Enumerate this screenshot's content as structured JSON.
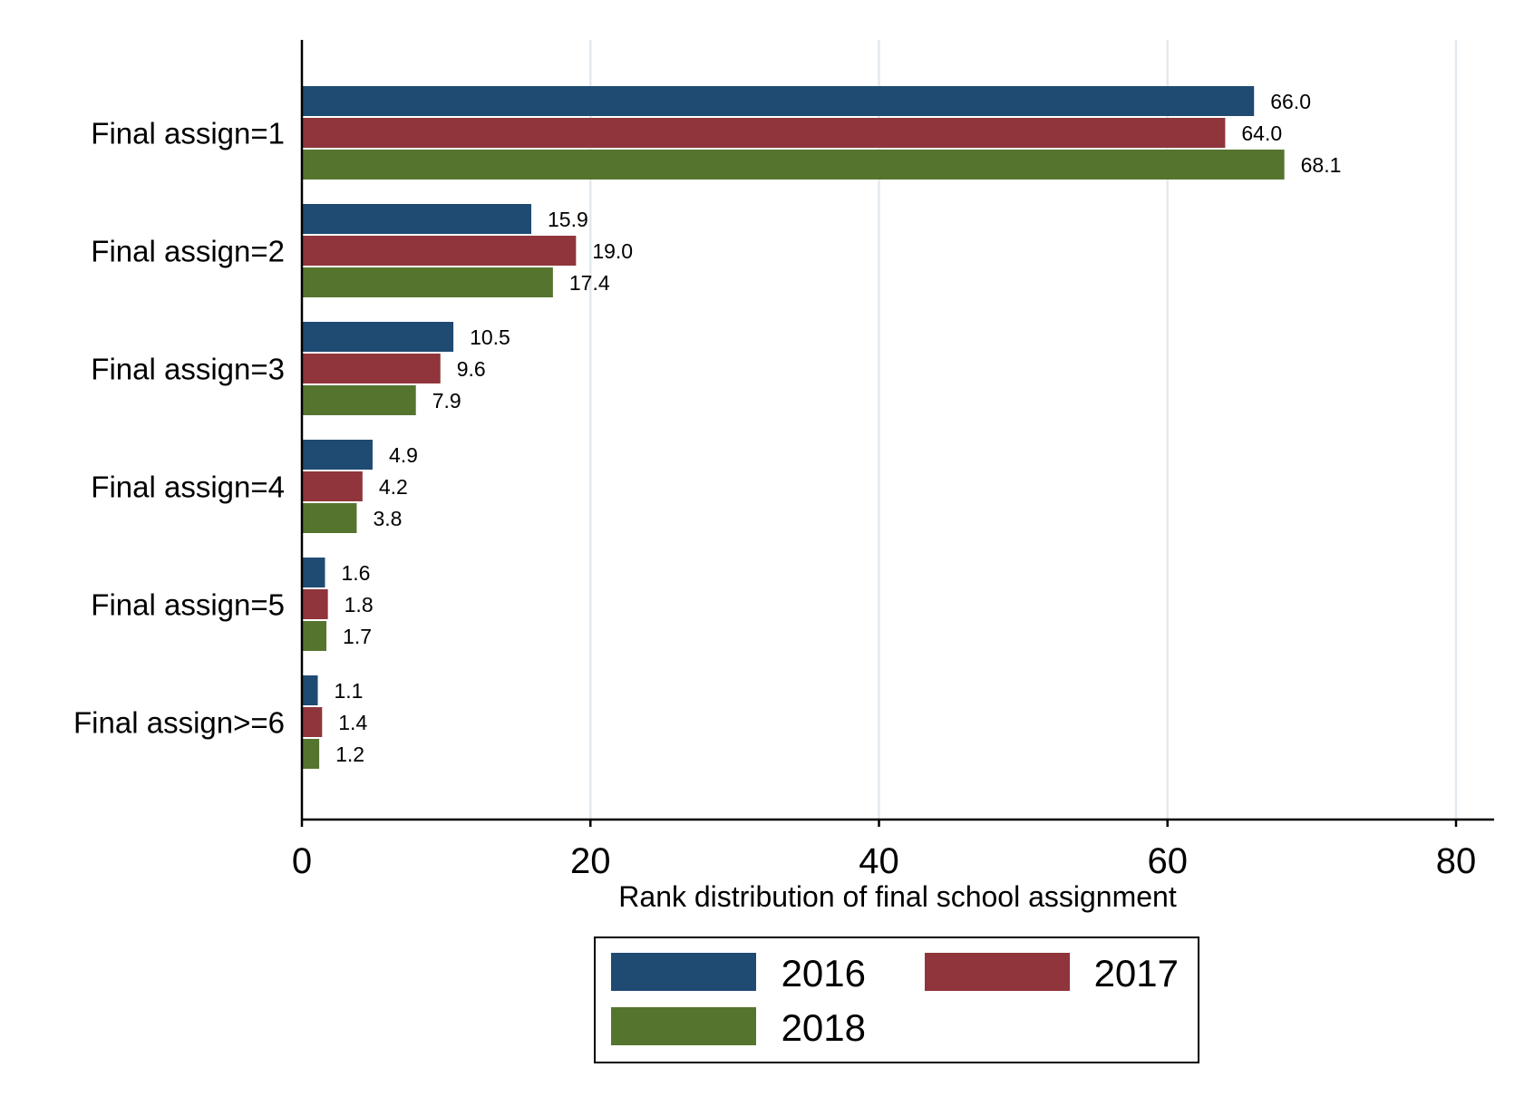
{
  "chart_data": {
    "type": "bar",
    "orientation": "horizontal",
    "title": "",
    "xlabel": "Rank distribution of final school assignment",
    "ylabel": "",
    "xlim": [
      0,
      80
    ],
    "xticks": [
      0,
      20,
      40,
      60,
      80
    ],
    "grid": true,
    "legend_position": "bottom",
    "categories": [
      "Final assign=1",
      "Final assign=2",
      "Final assign=3",
      "Final assign=4",
      "Final assign=5",
      "Final assign>=6"
    ],
    "series": [
      {
        "name": "2016",
        "color": "#1f4a72",
        "values": [
          66.0,
          15.9,
          10.5,
          4.9,
          1.6,
          1.1
        ],
        "labels": [
          "66.0",
          "15.9",
          "10.5",
          "4.9",
          "1.6",
          "1.1"
        ]
      },
      {
        "name": "2017",
        "color": "#90353b",
        "values": [
          64.0,
          19.0,
          9.6,
          4.2,
          1.8,
          1.4
        ],
        "labels": [
          "64.0",
          "19.0",
          "9.6",
          "4.2",
          "1.8",
          "1.4"
        ]
      },
      {
        "name": "2018",
        "color": "#55752f",
        "values": [
          68.1,
          17.4,
          7.9,
          3.8,
          1.7,
          1.2
        ],
        "labels": [
          "68.1",
          "17.4",
          "7.9",
          "3.8",
          "1.7",
          "1.2"
        ]
      }
    ]
  }
}
